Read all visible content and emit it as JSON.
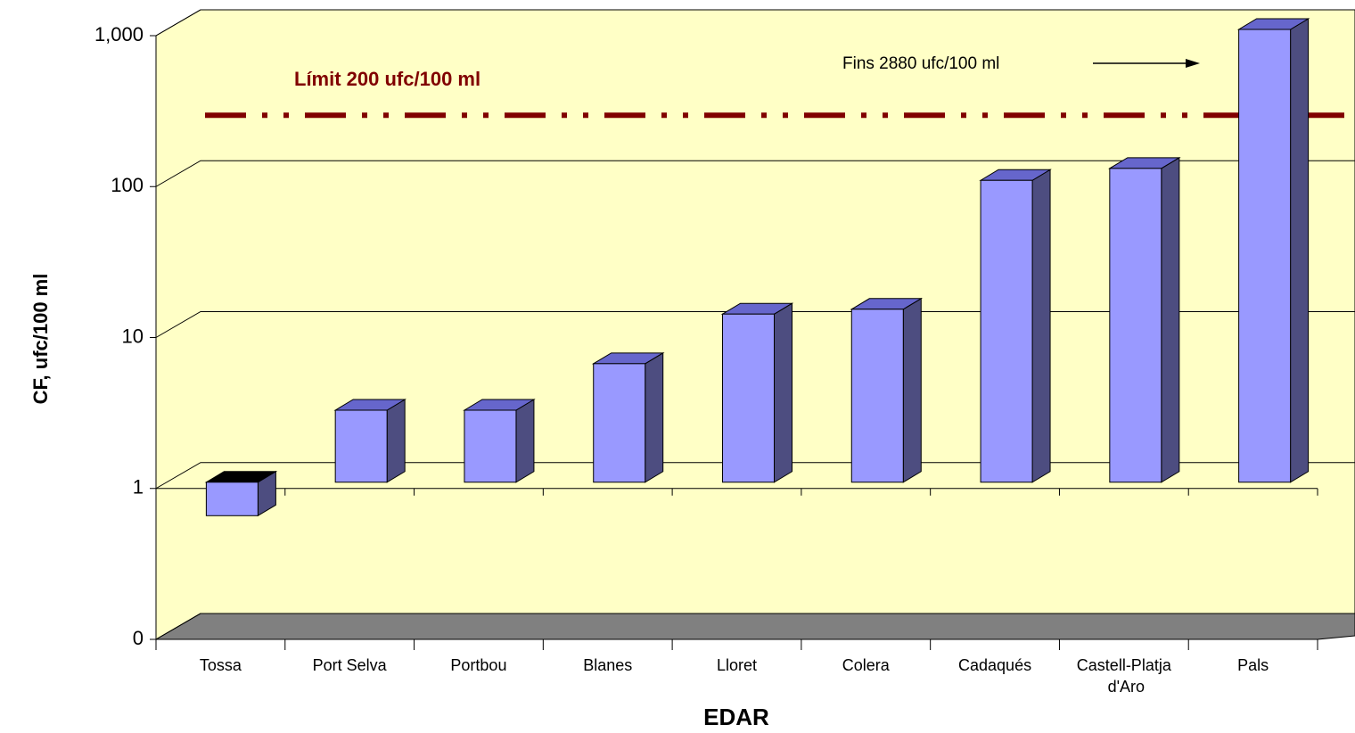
{
  "chart_data": {
    "type": "bar3d",
    "x_label": "EDAR",
    "y_label": "CF, ufc/100 ml",
    "categories": [
      "Tossa",
      "Port Selva",
      "Portbou",
      "Blanes",
      "Lloret",
      "Colera",
      "Cadaqués",
      "Castell-Platja d'Aro",
      "Pals"
    ],
    "values": [
      0.6,
      3,
      3,
      6.1,
      13,
      14,
      100,
      120,
      1000
    ],
    "color": "#9999ff",
    "log_scale": true,
    "ylim": [
      0.1,
      1000
    ],
    "yticks": [
      {
        "value": 0.1,
        "label": "0"
      },
      1,
      10,
      100,
      {
        "value": 1000,
        "label": "1,000"
      }
    ],
    "grid": true,
    "reference_line": {
      "value": 200,
      "label": "Límit 200 ufc/100 ml",
      "color": "#800000"
    },
    "annotation": "Fins 2880 ufc/100 ml"
  }
}
